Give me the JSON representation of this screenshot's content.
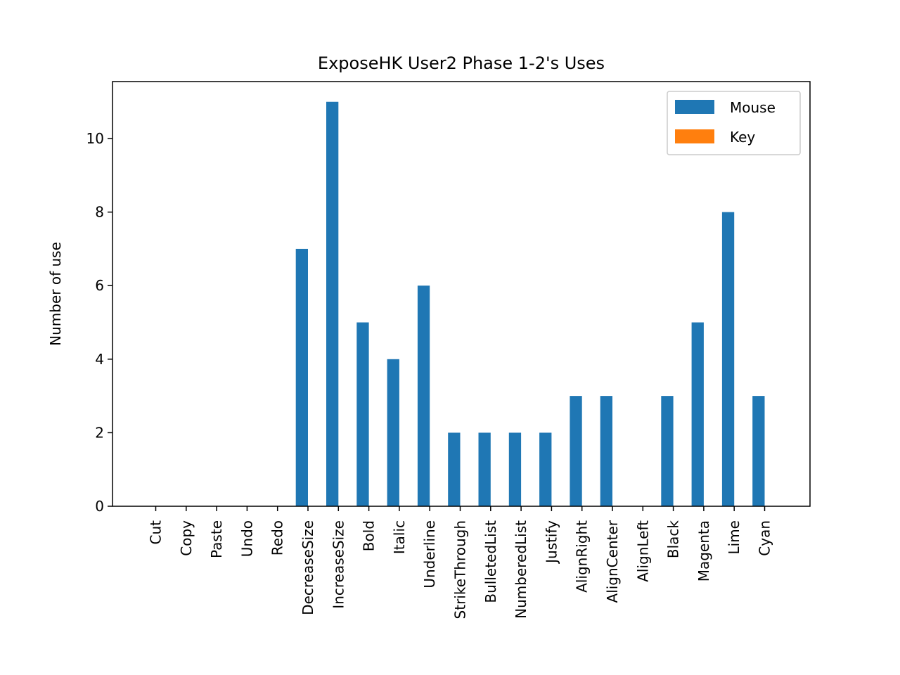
{
  "chart_data": {
    "type": "bar",
    "title": "ExposeHK User2 Phase 1-2's Uses",
    "xlabel": "",
    "ylabel": "Number of use",
    "ylim": [
      0,
      11.55
    ],
    "yticks": [
      0,
      2,
      4,
      6,
      8,
      10
    ],
    "grid": false,
    "legend_position": "top-right",
    "categories": [
      "Cut",
      "Copy",
      "Paste",
      "Undo",
      "Redo",
      "DecreaseSize",
      "IncreaseSize",
      "Bold",
      "Italic",
      "Underline",
      "StrikeThrough",
      "BulletedList",
      "NumberedList",
      "Justify",
      "AlignRight",
      "AlignCenter",
      "AlignLeft",
      "Black",
      "Magenta",
      "Lime",
      "Cyan"
    ],
    "series": [
      {
        "name": "Mouse",
        "color": "#1f77b4",
        "values": [
          0,
          0,
          0,
          0,
          0,
          7,
          11,
          5,
          4,
          6,
          2,
          2,
          2,
          2,
          3,
          3,
          0,
          3,
          5,
          8,
          3
        ]
      },
      {
        "name": "Key",
        "color": "#ff7f0e",
        "values": [
          0,
          0,
          0,
          0,
          0,
          0,
          0,
          0,
          0,
          0,
          0,
          0,
          0,
          0,
          0,
          0,
          0,
          0,
          0,
          0,
          0
        ]
      }
    ]
  }
}
